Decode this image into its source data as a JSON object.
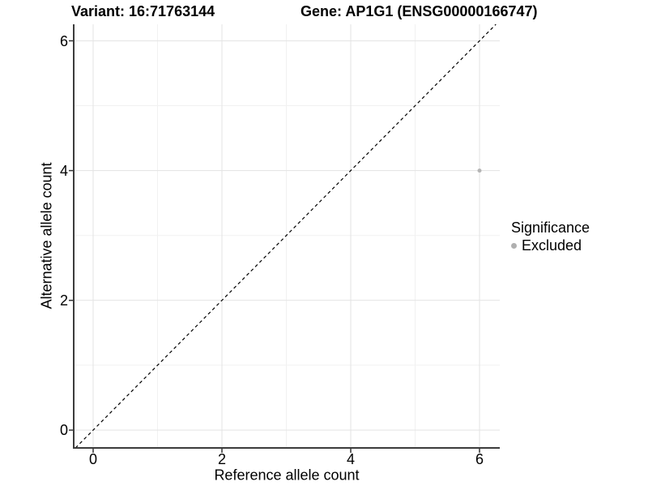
{
  "titles": {
    "variant": "Variant: 16:71763144",
    "gene": "Gene: AP1G1 (ENSG00000166747)"
  },
  "chart_data": {
    "type": "scatter",
    "title_left": "Variant: 16:71763144",
    "title_right": "Gene: AP1G1 (ENSG00000166747)",
    "xlabel": "Reference allele count",
    "ylabel": "Alternative allele count",
    "xlim": [
      -0.3,
      6.3
    ],
    "ylim": [
      -0.3,
      6.3
    ],
    "x_ticks": [
      0,
      2,
      4,
      6
    ],
    "y_ticks": [
      0,
      2,
      4,
      6
    ],
    "minor_ticks": [
      1,
      3,
      5
    ],
    "grid": "major and minor, light gray on white",
    "points": [
      {
        "x": 6,
        "y": 4,
        "series": "Excluded"
      }
    ],
    "reference_line": {
      "type": "identity y=x",
      "style": "dashed",
      "color": "#000000"
    },
    "legend": {
      "title": "Significance",
      "position": "right",
      "entries": [
        {
          "label": "Excluded",
          "color": "#b0b0b0"
        }
      ]
    },
    "colors": {
      "point": "#b5b5b5",
      "legend_key": "#b0b0b0",
      "grid_major": "#e3e3e3",
      "grid_minor": "#f1f1f1",
      "axis_line": "#3c3c3c",
      "tick_mark": "#333333",
      "dashed_line": "#000000",
      "text": "#000000"
    }
  }
}
